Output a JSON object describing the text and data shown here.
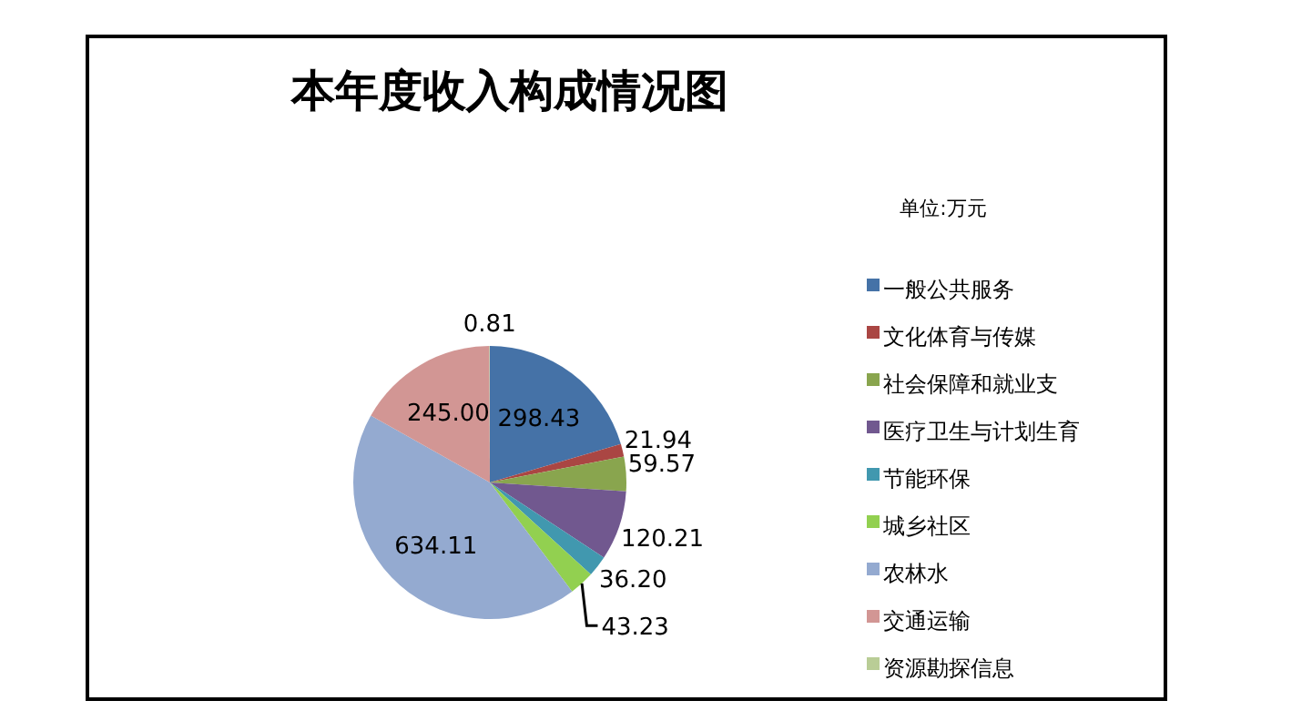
{
  "chart_data": {
    "type": "pie",
    "title": "本年度收入构成情况图",
    "annotations": [
      "单位:万元"
    ],
    "categories": [
      "一般公共服务",
      "文化体育与传媒",
      "社会保障和就业支",
      "医疗卫生与计划生育",
      "节能环保",
      "城乡社区",
      "农林水",
      "交通运输",
      "资源勘探信息"
    ],
    "values": [
      298.43,
      21.94,
      59.57,
      120.21,
      36.2,
      43.23,
      634.11,
      245.0,
      0.81
    ],
    "value_labels": [
      "298.43",
      "21.94",
      "59.57",
      "120.21",
      "36.20",
      "43.23",
      "634.11",
      "245.00",
      "0.81"
    ],
    "colors": [
      "#4572a7",
      "#aa4643",
      "#89a54e",
      "#71588f",
      "#4198af",
      "#92d050",
      "#94aad0",
      "#d29694",
      "#b9cd96"
    ],
    "legend": "right"
  }
}
